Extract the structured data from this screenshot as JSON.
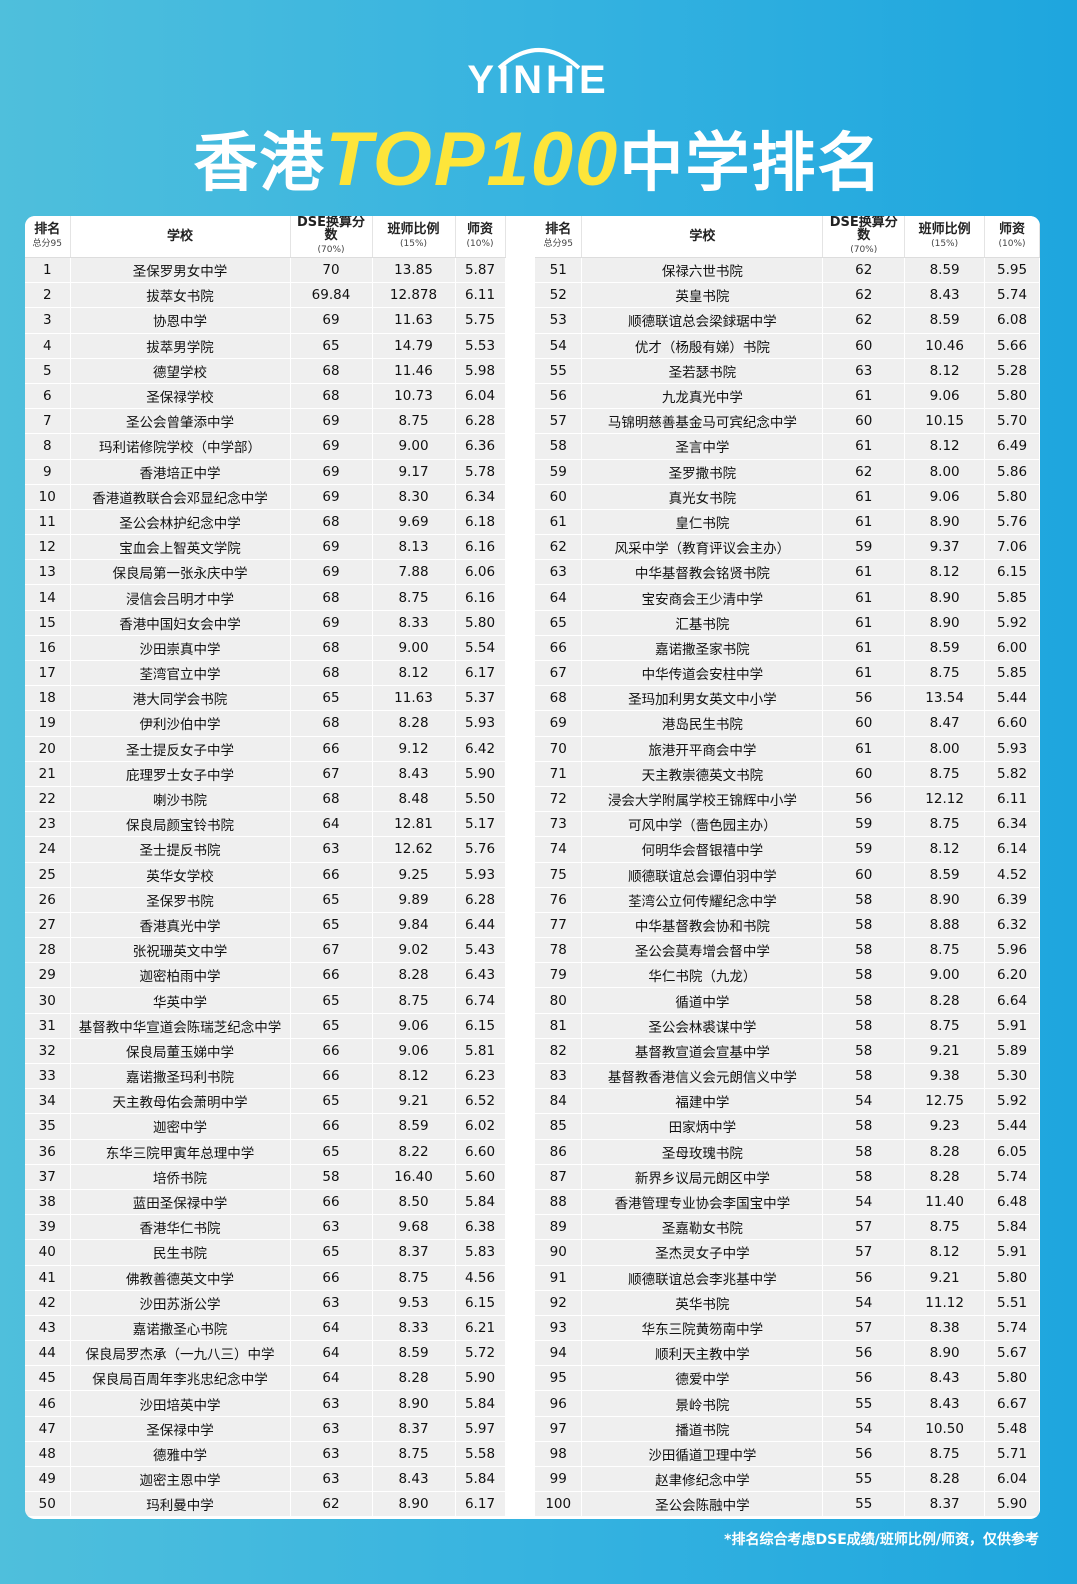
{
  "brand": "YINHE",
  "title": {
    "pre": "香港",
    "highlight": "TOP100",
    "post": "中学排名"
  },
  "colors": {
    "highlight": "#fde53a",
    "background": "#2eaee0"
  },
  "headers": {
    "rank": "排名",
    "rank_sub": "总分95",
    "school": "学校",
    "dse": "DSE换算分数",
    "dse_sub": "(70%)",
    "ratio": "班师比例",
    "ratio_sub": "(15%)",
    "teacher": "师资",
    "teacher_sub": "(10%)"
  },
  "rows": [
    [
      "1",
      "圣保罗男女中学",
      "70",
      "13.85",
      "5.87"
    ],
    [
      "2",
      "拔萃女书院",
      "69.84",
      "12.878",
      "6.11"
    ],
    [
      "3",
      "协恩中学",
      "69",
      "11.63",
      "5.75"
    ],
    [
      "4",
      "拔萃男学院",
      "65",
      "14.79",
      "5.53"
    ],
    [
      "5",
      "德望学校",
      "68",
      "11.46",
      "5.98"
    ],
    [
      "6",
      "圣保禄学校",
      "68",
      "10.73",
      "6.04"
    ],
    [
      "7",
      "圣公会曾肇添中学",
      "69",
      "8.75",
      "6.28"
    ],
    [
      "8",
      "玛利诺修院学校（中学部）",
      "69",
      "9.00",
      "6.36"
    ],
    [
      "9",
      "香港培正中学",
      "69",
      "9.17",
      "5.78"
    ],
    [
      "10",
      "香港道教联合会邓显纪念中学",
      "69",
      "8.30",
      "6.34"
    ],
    [
      "11",
      "圣公会林护纪念中学",
      "68",
      "9.69",
      "6.18"
    ],
    [
      "12",
      "宝血会上智英文学院",
      "69",
      "8.13",
      "6.16"
    ],
    [
      "13",
      "保良局第一张永庆中学",
      "69",
      "7.88",
      "6.06"
    ],
    [
      "14",
      "浸信会吕明才中学",
      "68",
      "8.75",
      "6.16"
    ],
    [
      "15",
      "香港中国妇女会中学",
      "69",
      "8.33",
      "5.80"
    ],
    [
      "16",
      "沙田崇真中学",
      "68",
      "9.00",
      "5.54"
    ],
    [
      "17",
      "荃湾官立中学",
      "68",
      "8.12",
      "6.17"
    ],
    [
      "18",
      "港大同学会书院",
      "65",
      "11.63",
      "5.37"
    ],
    [
      "19",
      "伊利沙伯中学",
      "68",
      "8.28",
      "5.93"
    ],
    [
      "20",
      "圣士提反女子中学",
      "66",
      "9.12",
      "6.42"
    ],
    [
      "21",
      "庇理罗士女子中学",
      "67",
      "8.43",
      "5.90"
    ],
    [
      "22",
      "喇沙书院",
      "68",
      "8.48",
      "5.50"
    ],
    [
      "23",
      "保良局颜宝铃书院",
      "64",
      "12.81",
      "5.17"
    ],
    [
      "24",
      "圣士提反书院",
      "63",
      "12.62",
      "5.76"
    ],
    [
      "25",
      "英华女学校",
      "66",
      "9.25",
      "5.93"
    ],
    [
      "26",
      "圣保罗书院",
      "65",
      "9.89",
      "6.28"
    ],
    [
      "27",
      "香港真光中学",
      "65",
      "9.84",
      "6.44"
    ],
    [
      "28",
      "张祝珊英文中学",
      "67",
      "9.02",
      "5.43"
    ],
    [
      "29",
      "迦密柏雨中学",
      "66",
      "8.28",
      "6.43"
    ],
    [
      "30",
      "华英中学",
      "65",
      "8.75",
      "6.74"
    ],
    [
      "31",
      "基督教中华宣道会陈瑞芝纪念中学",
      "65",
      "9.06",
      "6.15"
    ],
    [
      "32",
      "保良局董玉娣中学",
      "66",
      "9.06",
      "5.81"
    ],
    [
      "33",
      "嘉诺撒圣玛利书院",
      "66",
      "8.12",
      "6.23"
    ],
    [
      "34",
      "天主教母佑会萧明中学",
      "65",
      "9.21",
      "6.52"
    ],
    [
      "35",
      "迦密中学",
      "66",
      "8.59",
      "6.02"
    ],
    [
      "36",
      "东华三院甲寅年总理中学",
      "65",
      "8.22",
      "6.60"
    ],
    [
      "37",
      "培侨书院",
      "58",
      "16.40",
      "5.60"
    ],
    [
      "38",
      "蓝田圣保禄中学",
      "66",
      "8.50",
      "5.84"
    ],
    [
      "39",
      "香港华仁书院",
      "63",
      "9.68",
      "6.38"
    ],
    [
      "40",
      "民生书院",
      "65",
      "8.37",
      "5.83"
    ],
    [
      "41",
      "佛教善德英文中学",
      "66",
      "8.75",
      "4.56"
    ],
    [
      "42",
      "沙田苏浙公学",
      "63",
      "9.53",
      "6.15"
    ],
    [
      "43",
      "嘉诺撒圣心书院",
      "64",
      "8.33",
      "6.21"
    ],
    [
      "44",
      "保良局罗杰承（一九八三）中学",
      "64",
      "8.59",
      "5.72"
    ],
    [
      "45",
      "保良局百周年李兆忠纪念中学",
      "64",
      "8.28",
      "5.90"
    ],
    [
      "46",
      "沙田培英中学",
      "63",
      "8.90",
      "5.84"
    ],
    [
      "47",
      "圣保禄中学",
      "63",
      "8.37",
      "5.97"
    ],
    [
      "48",
      "德雅中学",
      "63",
      "8.75",
      "5.58"
    ],
    [
      "49",
      "迦密主恩中学",
      "63",
      "8.43",
      "5.84"
    ],
    [
      "50",
      "玛利曼中学",
      "62",
      "8.90",
      "6.17"
    ],
    [
      "51",
      "保禄六世书院",
      "62",
      "8.59",
      "5.95"
    ],
    [
      "52",
      "英皇书院",
      "62",
      "8.43",
      "5.74"
    ],
    [
      "53",
      "顺德联谊总会梁銶琚中学",
      "62",
      "8.59",
      "6.08"
    ],
    [
      "54",
      "优才（杨殷有娣）书院",
      "60",
      "10.46",
      "5.66"
    ],
    [
      "55",
      "圣若瑟书院",
      "63",
      "8.12",
      "5.28"
    ],
    [
      "56",
      "九龙真光中学",
      "61",
      "9.06",
      "5.80"
    ],
    [
      "57",
      "马锦明慈善基金马可宾纪念中学",
      "60",
      "10.15",
      "5.70"
    ],
    [
      "58",
      "圣言中学",
      "61",
      "8.12",
      "6.49"
    ],
    [
      "59",
      "圣罗撒书院",
      "62",
      "8.00",
      "5.86"
    ],
    [
      "60",
      "真光女书院",
      "61",
      "9.06",
      "5.80"
    ],
    [
      "61",
      "皇仁书院",
      "61",
      "8.90",
      "5.76"
    ],
    [
      "62",
      "风采中学（教育评议会主办）",
      "59",
      "9.37",
      "7.06"
    ],
    [
      "63",
      "中华基督教会铭贤书院",
      "61",
      "8.12",
      "6.15"
    ],
    [
      "64",
      "宝安商会王少清中学",
      "61",
      "8.90",
      "5.85"
    ],
    [
      "65",
      "汇基书院",
      "61",
      "8.90",
      "5.92"
    ],
    [
      "66",
      "嘉诺撒圣家书院",
      "61",
      "8.59",
      "6.00"
    ],
    [
      "67",
      "中华传道会安柱中学",
      "61",
      "8.75",
      "5.85"
    ],
    [
      "68",
      "圣玛加利男女英文中小学",
      "56",
      "13.54",
      "5.44"
    ],
    [
      "69",
      "港岛民生书院",
      "60",
      "8.47",
      "6.60"
    ],
    [
      "70",
      "旅港开平商会中学",
      "61",
      "8.00",
      "5.93"
    ],
    [
      "71",
      "天主教崇德英文书院",
      "60",
      "8.75",
      "5.82"
    ],
    [
      "72",
      "浸会大学附属学校王锦辉中小学",
      "56",
      "12.12",
      "6.11"
    ],
    [
      "73",
      "可风中学（嗇色园主办）",
      "59",
      "8.75",
      "6.34"
    ],
    [
      "74",
      "何明华会督银禧中学",
      "59",
      "8.12",
      "6.14"
    ],
    [
      "75",
      "顺德联谊总会谭伯羽中学",
      "60",
      "8.59",
      "4.52"
    ],
    [
      "76",
      "荃湾公立何传耀纪念中学",
      "58",
      "8.90",
      "6.39"
    ],
    [
      "77",
      "中华基督教会协和书院",
      "58",
      "8.88",
      "6.32"
    ],
    [
      "78",
      "圣公会莫寿增会督中学",
      "58",
      "8.75",
      "5.96"
    ],
    [
      "79",
      "华仁书院（九龙）",
      "58",
      "9.00",
      "6.20"
    ],
    [
      "80",
      "循道中学",
      "58",
      "8.28",
      "6.64"
    ],
    [
      "81",
      "圣公会林裘谋中学",
      "58",
      "8.75",
      "5.91"
    ],
    [
      "82",
      "基督教宣道会宣基中学",
      "58",
      "9.21",
      "5.89"
    ],
    [
      "83",
      "基督教香港信义会元朗信义中学",
      "58",
      "9.38",
      "5.30"
    ],
    [
      "84",
      "福建中学",
      "54",
      "12.75",
      "5.92"
    ],
    [
      "85",
      "田家炳中学",
      "58",
      "9.23",
      "5.44"
    ],
    [
      "86",
      "圣母玫瑰书院",
      "58",
      "8.28",
      "6.05"
    ],
    [
      "87",
      "新界乡议局元朗区中学",
      "58",
      "8.28",
      "5.74"
    ],
    [
      "88",
      "香港管理专业协会李国宝中学",
      "54",
      "11.40",
      "6.48"
    ],
    [
      "89",
      "圣嘉勒女书院",
      "57",
      "8.75",
      "5.84"
    ],
    [
      "90",
      "圣杰灵女子中学",
      "57",
      "8.12",
      "5.91"
    ],
    [
      "91",
      "顺德联谊总会李兆基中学",
      "56",
      "9.21",
      "5.80"
    ],
    [
      "92",
      "英华书院",
      "54",
      "11.12",
      "5.51"
    ],
    [
      "93",
      "华东三院黄笏南中学",
      "57",
      "8.38",
      "5.74"
    ],
    [
      "94",
      "顺利天主教中学",
      "56",
      "8.90",
      "5.67"
    ],
    [
      "95",
      "德爱中学",
      "56",
      "8.43",
      "5.80"
    ],
    [
      "96",
      "景岭书院",
      "55",
      "8.43",
      "6.67"
    ],
    [
      "97",
      "播道书院",
      "54",
      "10.50",
      "5.48"
    ],
    [
      "98",
      "沙田循道卫理中学",
      "56",
      "8.75",
      "5.71"
    ],
    [
      "99",
      "赵聿修纪念中学",
      "55",
      "8.28",
      "6.04"
    ],
    [
      "100",
      "圣公会陈融中学",
      "55",
      "8.37",
      "5.90"
    ]
  ],
  "footnote": "*排名综合考虑DSE成绩/班师比例/师资，仅供参考"
}
